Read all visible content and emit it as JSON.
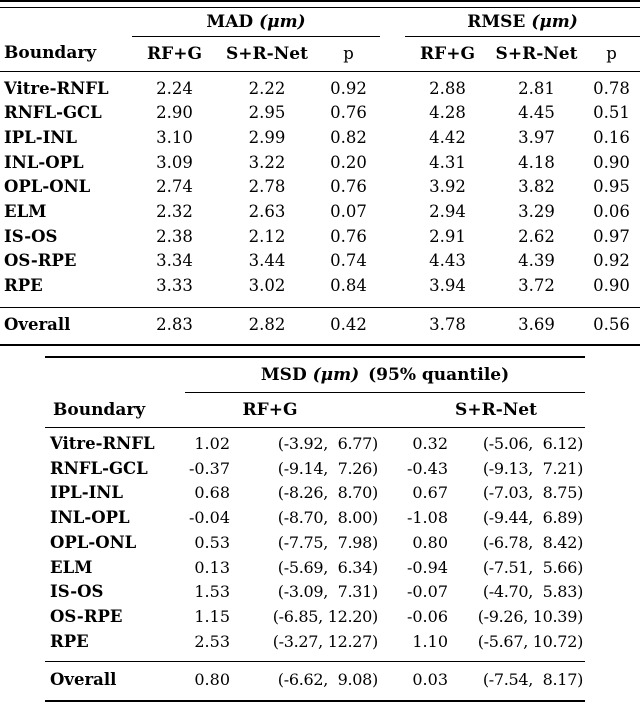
{
  "table1": {
    "groups": {
      "mad": {
        "name": "MAD",
        "unit": "(μm)"
      },
      "rmse": {
        "name": "RMSE",
        "unit": "(μm)"
      }
    },
    "headers": {
      "boundary": "Boundary",
      "rfg": "RF+G",
      "srnet": "S+R-Net",
      "p": "p"
    },
    "rows": [
      [
        "Vitre-RNFL",
        "2.24",
        "2.22",
        "0.92",
        "2.88",
        "2.81",
        "0.78"
      ],
      [
        "RNFL-GCL",
        "2.90",
        "2.95",
        "0.76",
        "4.28",
        "4.45",
        "0.51"
      ],
      [
        "IPL-INL",
        "3.10",
        "2.99",
        "0.82",
        "4.42",
        "3.97",
        "0.16"
      ],
      [
        "INL-OPL",
        "3.09",
        "3.22",
        "0.20",
        "4.31",
        "4.18",
        "0.90"
      ],
      [
        "OPL-ONL",
        "2.74",
        "2.78",
        "0.76",
        "3.92",
        "3.82",
        "0.95"
      ],
      [
        "ELM",
        "2.32",
        "2.63",
        "0.07",
        "2.94",
        "3.29",
        "0.06"
      ],
      [
        "IS-OS",
        "2.38",
        "2.12",
        "0.76",
        "2.91",
        "2.62",
        "0.97"
      ],
      [
        "OS-RPE",
        "3.34",
        "3.44",
        "0.74",
        "4.43",
        "4.39",
        "0.92"
      ],
      [
        "RPE",
        "3.33",
        "3.02",
        "0.84",
        "3.94",
        "3.72",
        "0.90"
      ]
    ],
    "overall": [
      "Overall",
      "2.83",
      "2.82",
      "0.42",
      "3.78",
      "3.69",
      "0.56"
    ]
  },
  "table2": {
    "title": {
      "name": "MSD",
      "unit": "(μm)",
      "quantile": "(95% quantile)"
    },
    "headers": {
      "boundary": "Boundary",
      "rfg": "RF+G",
      "srnet": "S+R-Net"
    },
    "rows": [
      [
        "Vitre-RNFL",
        "1.02",
        "(-3.92,  6.77)",
        "0.32",
        "(-5.06,  6.12)"
      ],
      [
        "RNFL-GCL",
        "-0.37",
        "(-9.14,  7.26)",
        "-0.43",
        "(-9.13,  7.21)"
      ],
      [
        "IPL-INL",
        "0.68",
        "(-8.26,  8.70)",
        "0.67",
        "(-7.03,  8.75)"
      ],
      [
        "INL-OPL",
        "-0.04",
        "(-8.70,  8.00)",
        "-1.08",
        "(-9.44,  6.89)"
      ],
      [
        "OPL-ONL",
        "0.53",
        "(-7.75,  7.98)",
        "0.80",
        "(-6.78,  8.42)"
      ],
      [
        "ELM",
        "0.13",
        "(-5.69,  6.34)",
        "-0.94",
        "(-7.51,  5.66)"
      ],
      [
        "IS-OS",
        "1.53",
        "(-3.09,  7.31)",
        "-0.07",
        "(-4.70,  5.83)"
      ],
      [
        "OS-RPE",
        "1.15",
        "(-6.85, 12.20)",
        "-0.06",
        "(-9.26, 10.39)"
      ],
      [
        "RPE",
        "2.53",
        "(-3.27, 12.27)",
        "1.10",
        "(-5.67, 10.72)"
      ]
    ],
    "overall": [
      "Overall",
      "0.80",
      "(-6.62,  9.08)",
      "0.03",
      "(-7.54,  8.17)"
    ]
  },
  "colors": {
    "text": "#000000",
    "rule": "#000000",
    "background": "#ffffff"
  }
}
